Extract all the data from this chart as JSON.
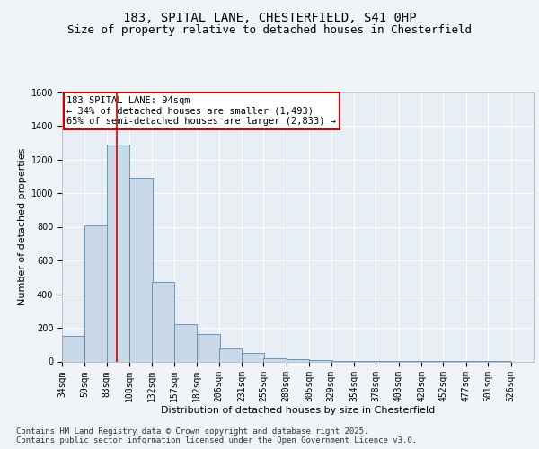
{
  "title_line1": "183, SPITAL LANE, CHESTERFIELD, S41 0HP",
  "title_line2": "Size of property relative to detached houses in Chesterfield",
  "xlabel": "Distribution of detached houses by size in Chesterfield",
  "ylabel": "Number of detached properties",
  "bins": [
    34,
    59,
    83,
    108,
    132,
    157,
    182,
    206,
    231,
    255,
    280,
    305,
    329,
    354,
    378,
    403,
    428,
    452,
    477,
    501,
    526
  ],
  "counts": [
    150,
    810,
    1290,
    1090,
    470,
    220,
    165,
    75,
    50,
    20,
    15,
    10,
    5,
    5,
    3,
    2,
    2,
    1,
    1,
    1,
    0
  ],
  "bar_color": "#c9d9e8",
  "bar_edge_color": "#5a8ab0",
  "vline_x": 94,
  "vline_color": "#cc0000",
  "annotation_box_text": "183 SPITAL LANE: 94sqm\n← 34% of detached houses are smaller (1,493)\n65% of semi-detached houses are larger (2,833) →",
  "annotation_box_color": "#cc0000",
  "ylim": [
    0,
    1600
  ],
  "yticks": [
    0,
    200,
    400,
    600,
    800,
    1000,
    1200,
    1400,
    1600
  ],
  "footer_text": "Contains HM Land Registry data © Crown copyright and database right 2025.\nContains public sector information licensed under the Open Government Licence v3.0.",
  "bg_color": "#f0f4f8",
  "plot_bg_color": "#e8eef5",
  "grid_color": "#ffffff",
  "title_fontsize": 10,
  "subtitle_fontsize": 9,
  "axis_label_fontsize": 8,
  "tick_label_fontsize": 7,
  "footer_fontsize": 6.5,
  "annotation_fontsize": 7.5
}
